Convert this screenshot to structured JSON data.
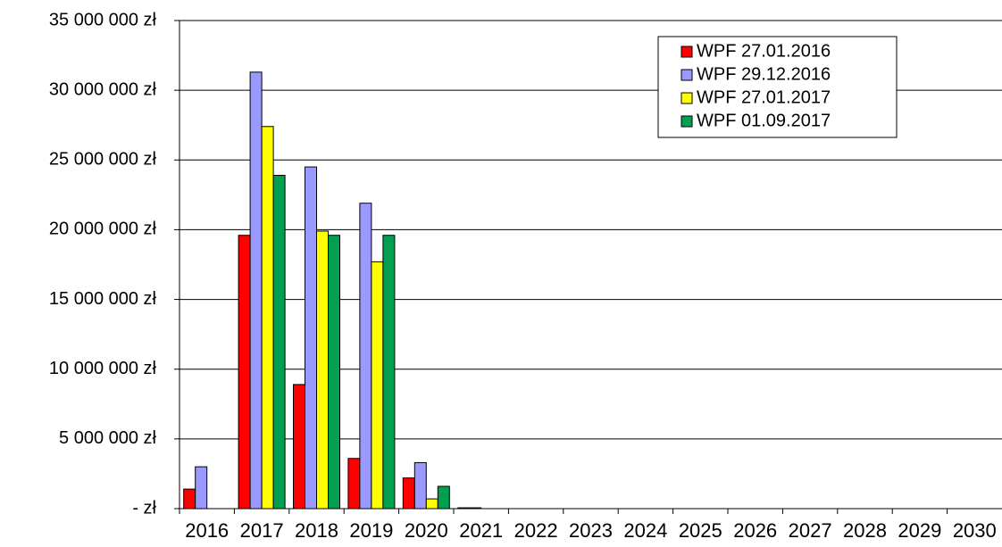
{
  "chart_data": {
    "type": "bar",
    "categories": [
      "2016",
      "2017",
      "2018",
      "2019",
      "2020",
      "2021",
      "2022",
      "2023",
      "2024",
      "2025",
      "2026",
      "2027",
      "2028",
      "2029",
      "2030"
    ],
    "series": [
      {
        "name": "WPF 27.01.2016",
        "color": "#ff0000",
        "values": [
          1400000,
          19600000,
          8900000,
          3600000,
          2200000,
          60000,
          null,
          null,
          null,
          null,
          null,
          null,
          null,
          null,
          null
        ]
      },
      {
        "name": "WPF 29.12.2016",
        "color": "#9999ff",
        "values": [
          3000000,
          31300000,
          24500000,
          21900000,
          3300000,
          60000,
          null,
          null,
          null,
          null,
          null,
          null,
          null,
          null,
          null
        ]
      },
      {
        "name": "WPF 27.01.2017",
        "color": "#ffff00",
        "values": [
          null,
          27400000,
          19900000,
          17700000,
          700000,
          null,
          null,
          null,
          null,
          null,
          null,
          null,
          null,
          null,
          null
        ]
      },
      {
        "name": "WPF 01.09.2017",
        "color": "#00a050",
        "values": [
          null,
          23900000,
          19600000,
          19600000,
          1600000,
          null,
          null,
          null,
          null,
          null,
          null,
          null,
          null,
          null,
          null
        ]
      }
    ],
    "ylim": [
      0,
      35000000
    ],
    "yticks": [
      {
        "value": 0,
        "label": "- zł"
      },
      {
        "value": 5000000,
        "label": "5 000 000 zł"
      },
      {
        "value": 10000000,
        "label": "10 000 000 zł"
      },
      {
        "value": 15000000,
        "label": "15 000 000 zł"
      },
      {
        "value": 20000000,
        "label": "20 000 000 zł"
      },
      {
        "value": 25000000,
        "label": "25 000 000 zł"
      },
      {
        "value": 30000000,
        "label": "30 000 000 zł"
      },
      {
        "value": 35000000,
        "label": "35 000 000 zł"
      }
    ],
    "grid": true,
    "legend": "top-right"
  }
}
